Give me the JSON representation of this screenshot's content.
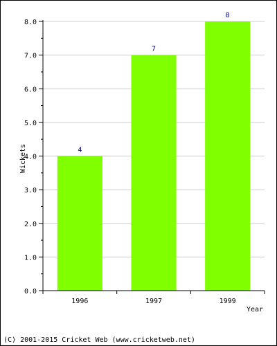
{
  "chart_data": {
    "type": "bar",
    "categories": [
      "1996",
      "1997",
      "1999"
    ],
    "values": [
      4,
      7,
      8
    ],
    "data_labels": [
      "4",
      "7",
      "8"
    ],
    "title": "",
    "xlabel": "Year",
    "ylabel": "Wickets",
    "ylim": [
      0,
      8
    ],
    "y_ticks": [
      "0.0",
      "1.0",
      "2.0",
      "3.0",
      "4.0",
      "5.0",
      "6.0",
      "7.0",
      "8.0"
    ],
    "grid": true,
    "bar_color": "#80ff00",
    "grid_color": "#cccccc",
    "label_color": "#00008b"
  },
  "footer": "(C) 2001-2015 Cricket Web (www.cricketweb.net)"
}
